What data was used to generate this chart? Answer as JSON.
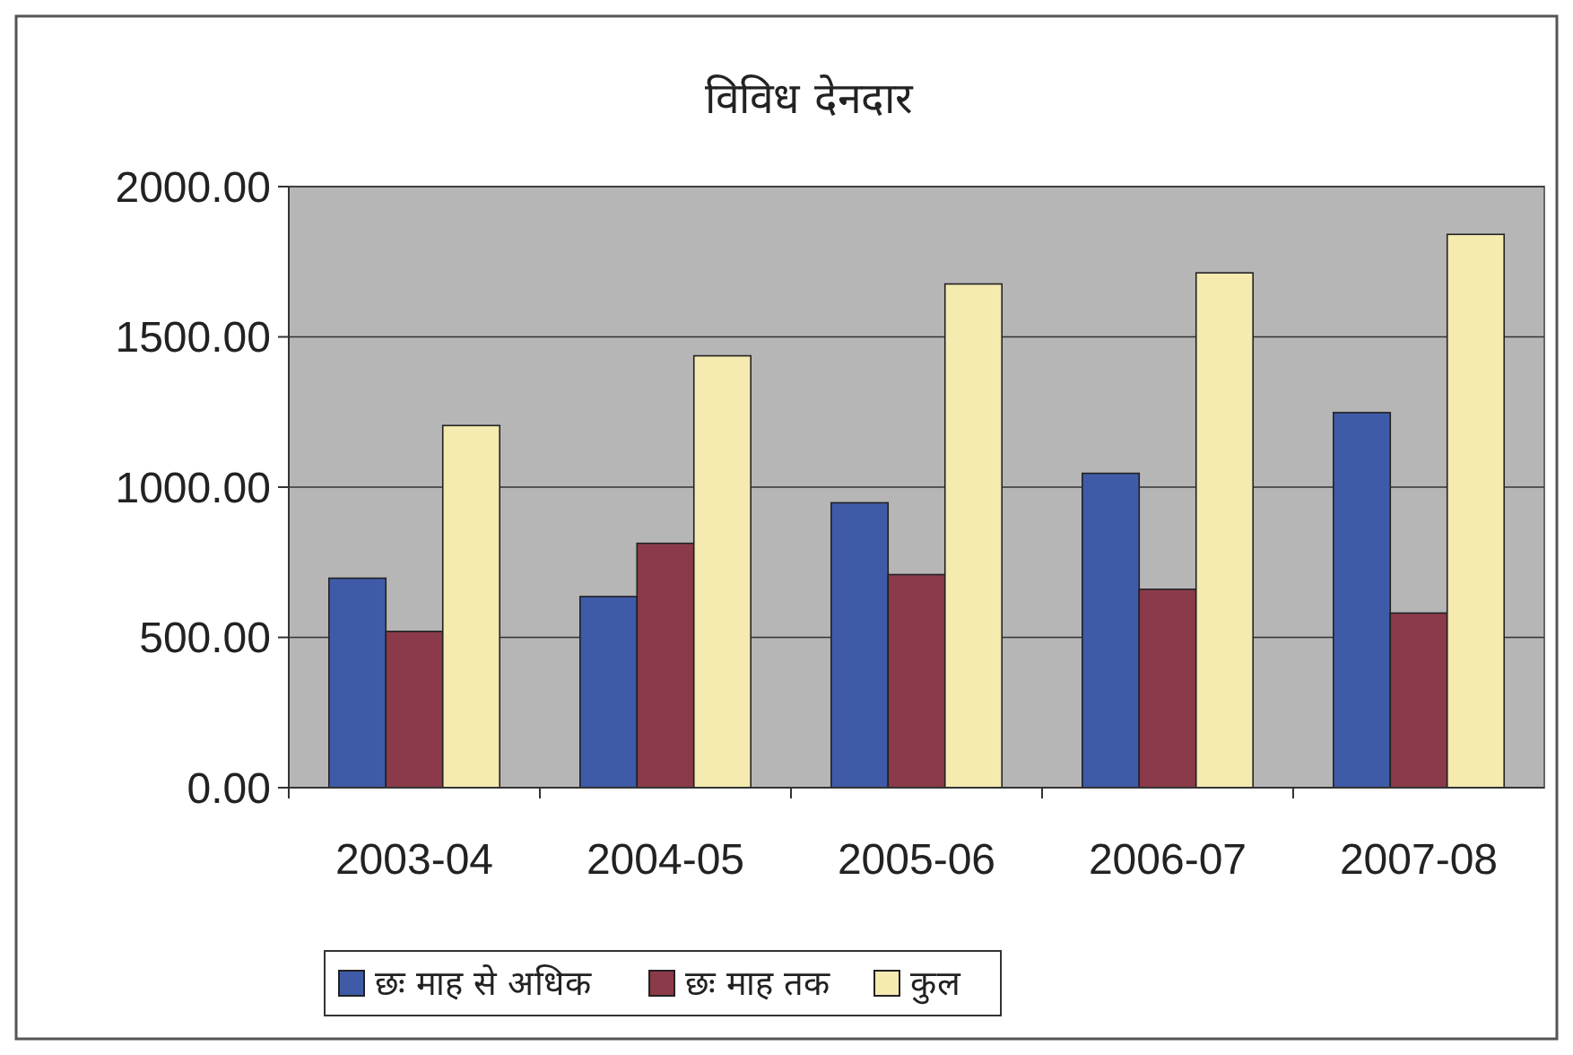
{
  "chart_data": {
    "type": "bar",
    "title": "विविध देनदार",
    "categories": [
      "2003-04",
      "2004-05",
      "2005-06",
      "2006-07",
      "2007-08"
    ],
    "series": [
      {
        "name": "छः माह से अधिक",
        "color": "#3f5ba8",
        "values": [
          697,
          636,
          948,
          1046,
          1248
        ]
      },
      {
        "name": "छः माह तक",
        "color": "#8b3a4a",
        "values": [
          520,
          813,
          709,
          660,
          581
        ]
      },
      {
        "name": "कुल",
        "color": "#f5eab0",
        "values": [
          1205,
          1437,
          1676,
          1713,
          1841
        ]
      }
    ],
    "ylim": [
      0,
      2000
    ],
    "yticks": [
      {
        "value": 0,
        "label": "0.00"
      },
      {
        "value": 500,
        "label": "500.00"
      },
      {
        "value": 1000,
        "label": "1000.00"
      },
      {
        "value": 1500,
        "label": "1500.00"
      },
      {
        "value": 2000,
        "label": "2000.00"
      }
    ],
    "grid": "y",
    "legend": "bottom"
  }
}
